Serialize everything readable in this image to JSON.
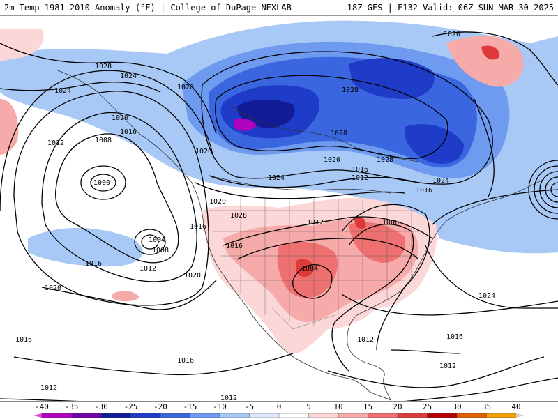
{
  "header": {
    "title": "2m Temp 1981-2010 Anomaly (°F) | College of DuPage NEXLAB",
    "run_info": "18Z GFS | F132 Valid: 06Z SUN MAR 30 2025"
  },
  "colorbar": {
    "ticks": [
      "-40",
      "-35",
      "-30",
      "-25",
      "-20",
      "-15",
      "-10",
      "-5",
      "0",
      "5",
      "10",
      "15",
      "20",
      "25",
      "30",
      "35",
      "40"
    ],
    "colors": [
      "#e040e0",
      "#b000c0",
      "#6e00a8",
      "#121a96",
      "#1f3cc8",
      "#3a66e0",
      "#6e9af0",
      "#a8c8f6",
      "#dceafb",
      "#ffffff",
      "#fbd7d7",
      "#f6aaaa",
      "#ee7070",
      "#de3a3a",
      "#b40000",
      "#e06000",
      "#f5a000",
      "#ffd200"
    ]
  },
  "map": {
    "colors": {
      "cold_light": "#a8c8f6",
      "cold_mid": "#6e9af0",
      "cold_deep": "#3a66e0",
      "cold_dark": "#1f3cc8",
      "cold_extreme": "#121a96",
      "cold_purple": "#b000c0",
      "warm_light": "#fbd7d7",
      "warm_mid": "#f6aaaa",
      "warm_deep": "#ee7070",
      "warm_hot": "#de3a3a",
      "warm_extreme": "#b40000",
      "isobar": "#000000"
    },
    "isobar_labels": [
      "1028",
      "1024",
      "1024",
      "1020",
      "1016",
      "1012",
      "1008",
      "1000",
      "1004",
      "1008",
      "1012",
      "1016",
      "1016",
      "1020",
      "1020",
      "1020",
      "1024",
      "1028",
      "1020",
      "1016",
      "1012",
      "1008",
      "1004",
      "1028",
      "1024",
      "1020",
      "1016",
      "1012",
      "1016",
      "1012",
      "1012",
      "1016",
      "1012",
      "1016",
      "1020",
      "1016",
      "1024",
      "1028",
      "1020",
      "1028",
      "1012"
    ]
  }
}
